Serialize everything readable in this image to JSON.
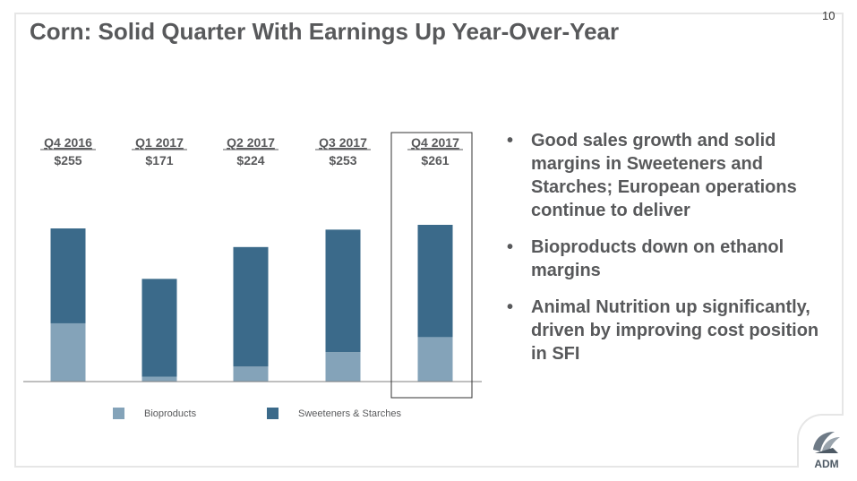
{
  "page_number": "10",
  "title": "Corn: Solid Quarter With Earnings Up Year-Over-Year",
  "bullets": [
    "Good sales growth and solid margins in Sweeteners and Starches; European operations continue to deliver",
    "Bioproducts down on ethanol margins",
    "Animal Nutrition up significantly, driven by improving cost position in SFI"
  ],
  "logo_text": "ADM",
  "colors": {
    "bioproducts": "#84a3b9",
    "sweeteners": "#3b6a8a",
    "text": "#58595b",
    "axis": "#7f7f7f"
  },
  "chart_data": {
    "type": "bar",
    "stacked": true,
    "categories": [
      "Q4 2016",
      "Q1 2017",
      "Q2 2017",
      "Q3 2017",
      "Q4 2017"
    ],
    "totals": [
      "$255",
      "$171",
      "$224",
      "$253",
      "$261"
    ],
    "series": [
      {
        "name": "Bioproducts",
        "values": [
          97,
          8,
          25,
          49,
          74
        ]
      },
      {
        "name": "Sweeteners & Starches",
        "values": [
          158,
          163,
          199,
          204,
          187
        ]
      }
    ],
    "highlight_category": "Q4 2017",
    "ylim": [
      0,
      261
    ],
    "legend_position": "bottom"
  }
}
